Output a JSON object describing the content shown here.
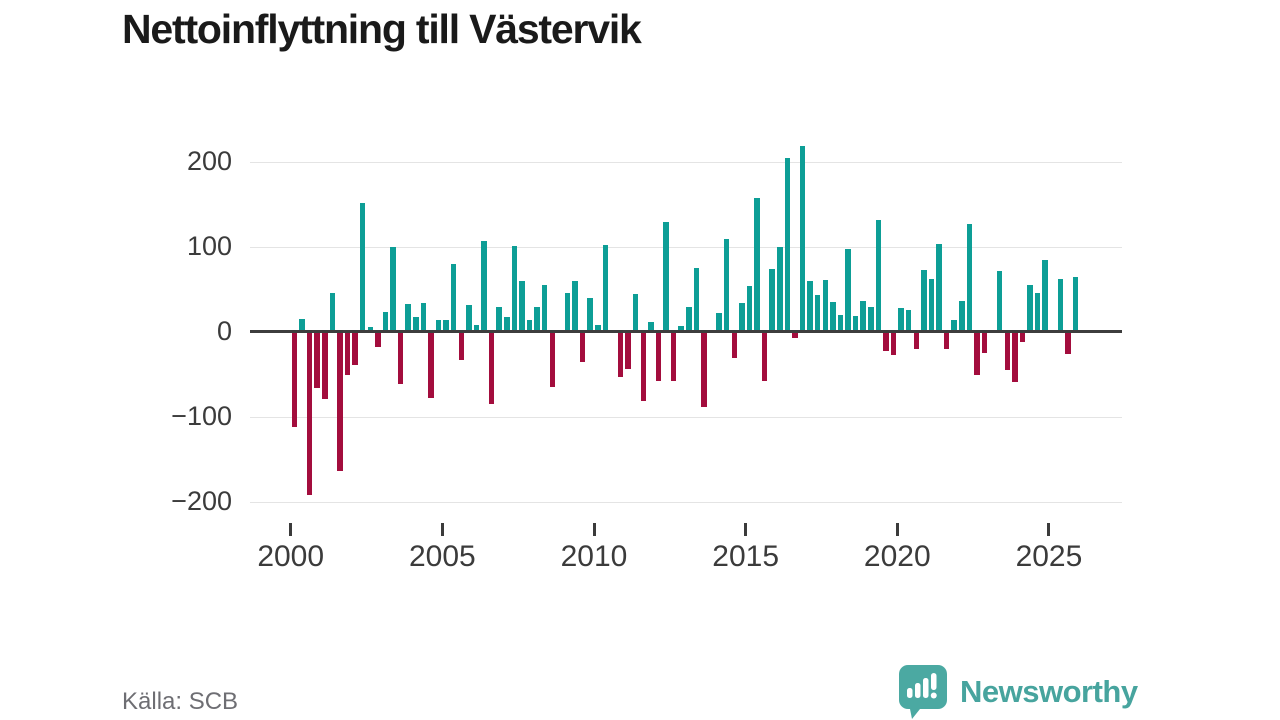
{
  "page": {
    "title": "Nettoinflyttning till Västervik",
    "source": "Källa: SCB"
  },
  "branding": {
    "logo_text": "Newsworthy",
    "logo_color": "#4BA9A2",
    "logo_icon": "bar-chart-speech-bubble-icon"
  },
  "chart_data": {
    "type": "bar",
    "title": "Nettoinflyttning till Västervik",
    "frequency": "quarterly",
    "x_start": {
      "year": 2000,
      "quarter": 1
    },
    "values": [
      -110,
      15,
      -190,
      -65,
      -78,
      45,
      -162,
      -49,
      -38,
      151,
      5,
      -17,
      23,
      100,
      -60,
      32,
      17,
      33,
      -76,
      13,
      14,
      79,
      -32,
      31,
      8,
      106,
      -84,
      29,
      17,
      101,
      60,
      14,
      29,
      55,
      -63,
      0,
      45,
      60,
      -34,
      39,
      8,
      102,
      0,
      -52,
      -42,
      44,
      -80,
      11,
      -57,
      129,
      -56,
      7,
      29,
      75,
      -87,
      0,
      22,
      109,
      -29,
      33,
      54,
      157,
      -56,
      74,
      100,
      204,
      -6,
      218,
      60,
      43,
      61,
      35,
      19,
      97,
      18,
      36,
      29,
      131,
      -21,
      -26,
      28,
      25,
      -19,
      72,
      62,
      103,
      -19,
      14,
      36,
      127,
      -49,
      -23,
      0,
      71,
      -44,
      -58,
      -10,
      55,
      45,
      84,
      0,
      62,
      -25,
      64
    ],
    "y_ticks": [
      {
        "value": 200,
        "label": "200"
      },
      {
        "value": 100,
        "label": "100"
      },
      {
        "value": 0,
        "label": "0"
      },
      {
        "value": -100,
        "label": "−100"
      },
      {
        "value": -200,
        "label": "−200"
      }
    ],
    "x_tick_labels": [
      "2000",
      "2005",
      "2010",
      "2015",
      "2020",
      "2025"
    ],
    "ylim": [
      -230,
      230
    ],
    "grid": true,
    "legend": "none",
    "positive_color": "#0D9E96",
    "negative_color": "#A30D3D"
  }
}
